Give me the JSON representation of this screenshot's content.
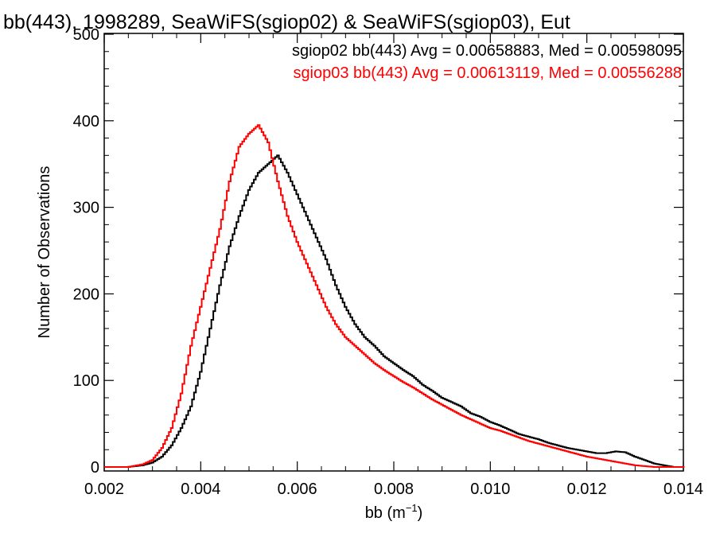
{
  "chart_data": {
    "type": "histogram",
    "title": "bb(443), 1998289, SeaWiFS(sgiop02) & SeaWiFS(sgiop03), Eut",
    "xlabel": "bb (m",
    "xlabel_sup": "−1",
    "xlabel_end": ")",
    "ylabel": "Number of Observations",
    "xlim": [
      0.002,
      0.014
    ],
    "ylim": [
      0,
      500
    ],
    "xticks": [
      0.002,
      0.004,
      0.006,
      0.008,
      0.01,
      0.012,
      0.014
    ],
    "xtick_labels": [
      "0.002",
      "0.004",
      "0.006",
      "0.008",
      "0.010",
      "0.012",
      "0.014"
    ],
    "yticks": [
      0,
      100,
      200,
      300,
      400,
      500
    ],
    "ytick_labels": [
      "0",
      "100",
      "200",
      "300",
      "400",
      "500"
    ],
    "grid": false,
    "series": [
      {
        "name": "sgiop02",
        "color": "#000000",
        "annotation": "sgiop02 bb(443) Avg = 0.00658883, Med = 0.00598095",
        "points": [
          [
            0.0025,
            0
          ],
          [
            0.0028,
            2
          ],
          [
            0.003,
            5
          ],
          [
            0.0032,
            12
          ],
          [
            0.0034,
            25
          ],
          [
            0.0036,
            45
          ],
          [
            0.0038,
            70
          ],
          [
            0.004,
            110
          ],
          [
            0.0042,
            160
          ],
          [
            0.0044,
            210
          ],
          [
            0.0046,
            255
          ],
          [
            0.0048,
            290
          ],
          [
            0.005,
            320
          ],
          [
            0.0052,
            340
          ],
          [
            0.0054,
            350
          ],
          [
            0.0056,
            360
          ],
          [
            0.0058,
            340
          ],
          [
            0.006,
            315
          ],
          [
            0.0062,
            290
          ],
          [
            0.0064,
            265
          ],
          [
            0.0066,
            240
          ],
          [
            0.0068,
            210
          ],
          [
            0.007,
            185
          ],
          [
            0.0072,
            165
          ],
          [
            0.0074,
            150
          ],
          [
            0.0076,
            140
          ],
          [
            0.0078,
            128
          ],
          [
            0.008,
            120
          ],
          [
            0.0082,
            112
          ],
          [
            0.0084,
            105
          ],
          [
            0.0086,
            95
          ],
          [
            0.0088,
            88
          ],
          [
            0.009,
            80
          ],
          [
            0.0092,
            75
          ],
          [
            0.0094,
            70
          ],
          [
            0.0096,
            62
          ],
          [
            0.0098,
            58
          ],
          [
            0.01,
            52
          ],
          [
            0.0102,
            48
          ],
          [
            0.0104,
            43
          ],
          [
            0.0106,
            38
          ],
          [
            0.0108,
            35
          ],
          [
            0.011,
            32
          ],
          [
            0.0112,
            28
          ],
          [
            0.0114,
            25
          ],
          [
            0.0116,
            22
          ],
          [
            0.0118,
            20
          ],
          [
            0.012,
            18
          ],
          [
            0.0122,
            16
          ],
          [
            0.0124,
            16
          ],
          [
            0.0126,
            18
          ],
          [
            0.0128,
            17
          ],
          [
            0.013,
            12
          ],
          [
            0.0132,
            8
          ],
          [
            0.0134,
            4
          ],
          [
            0.0136,
            2
          ],
          [
            0.0138,
            0
          ],
          [
            0.014,
            0
          ]
        ]
      },
      {
        "name": "sgiop03",
        "color": "#ff0000",
        "annotation": "sgiop03 bb(443) Avg = 0.00613119, Med = 0.00556288",
        "points": [
          [
            0.0025,
            0
          ],
          [
            0.0028,
            3
          ],
          [
            0.003,
            8
          ],
          [
            0.0032,
            22
          ],
          [
            0.0034,
            45
          ],
          [
            0.0036,
            85
          ],
          [
            0.0038,
            140
          ],
          [
            0.004,
            185
          ],
          [
            0.0042,
            230
          ],
          [
            0.0044,
            275
          ],
          [
            0.0046,
            330
          ],
          [
            0.0048,
            370
          ],
          [
            0.005,
            385
          ],
          [
            0.0052,
            395
          ],
          [
            0.0054,
            375
          ],
          [
            0.0056,
            330
          ],
          [
            0.0058,
            290
          ],
          [
            0.006,
            260
          ],
          [
            0.0062,
            235
          ],
          [
            0.0064,
            210
          ],
          [
            0.0066,
            185
          ],
          [
            0.0068,
            165
          ],
          [
            0.007,
            150
          ],
          [
            0.0072,
            140
          ],
          [
            0.0074,
            130
          ],
          [
            0.0076,
            120
          ],
          [
            0.0078,
            112
          ],
          [
            0.008,
            105
          ],
          [
            0.0082,
            98
          ],
          [
            0.0084,
            92
          ],
          [
            0.0086,
            85
          ],
          [
            0.0088,
            78
          ],
          [
            0.009,
            72
          ],
          [
            0.0092,
            66
          ],
          [
            0.0094,
            60
          ],
          [
            0.0096,
            55
          ],
          [
            0.0098,
            50
          ],
          [
            0.01,
            45
          ],
          [
            0.0102,
            42
          ],
          [
            0.0104,
            38
          ],
          [
            0.0106,
            34
          ],
          [
            0.0108,
            30
          ],
          [
            0.011,
            27
          ],
          [
            0.0112,
            24
          ],
          [
            0.0114,
            21
          ],
          [
            0.0116,
            18
          ],
          [
            0.0118,
            15
          ],
          [
            0.012,
            12
          ],
          [
            0.0122,
            10
          ],
          [
            0.0124,
            8
          ],
          [
            0.0126,
            6
          ],
          [
            0.0128,
            4
          ],
          [
            0.013,
            2
          ],
          [
            0.0132,
            1
          ],
          [
            0.0134,
            0
          ],
          [
            0.0136,
            0
          ],
          [
            0.014,
            0
          ]
        ]
      }
    ]
  }
}
